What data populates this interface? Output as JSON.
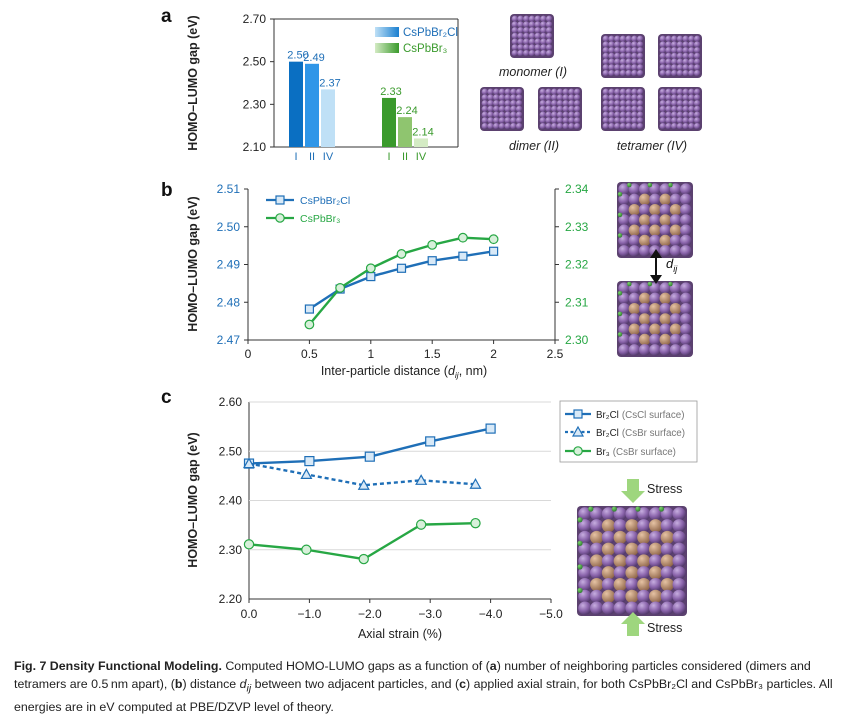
{
  "chart_data": [
    {
      "panel": "a",
      "type": "bar",
      "ylabel": "HOMO–LUMO gap (eV)",
      "ylim": [
        2.1,
        2.7
      ],
      "yticks": [
        "2.10",
        "2.30",
        "2.50",
        "2.70"
      ],
      "categories": [
        "I",
        "II",
        "IV"
      ],
      "series": [
        {
          "name": "CsPbBr₂Cl",
          "values": [
            2.5,
            2.49,
            2.37
          ],
          "labels": [
            "2.50",
            "2.49",
            "2.37"
          ],
          "colors": [
            "#0a6fc2",
            "#2f96e8",
            "#bfe0f6"
          ]
        },
        {
          "name": "CsPbBr₃",
          "values": [
            2.33,
            2.24,
            2.14
          ],
          "labels": [
            "2.33",
            "2.24",
            "2.14"
          ],
          "colors": [
            "#3a9a2c",
            "#8fc56f",
            "#d4ebc4"
          ]
        }
      ],
      "legend_position": "top-right",
      "grid": false
    },
    {
      "panel": "b",
      "type": "line",
      "xlabel": "Inter-particle distance (dᵢⱼ, nm)",
      "ylabel": "HOMO–LUMO gap (eV)",
      "xlim": [
        0,
        2.5
      ],
      "xticks": [
        "0",
        "0.5",
        "1",
        "1.5",
        "2",
        "2.5"
      ],
      "ylim_left": [
        2.47,
        2.51
      ],
      "yticks_left": [
        "2.47",
        "2.48",
        "2.49",
        "2.50",
        "2.51"
      ],
      "ylim_right": [
        2.3,
        2.34
      ],
      "yticks_right": [
        "2.30",
        "2.31",
        "2.32",
        "2.33",
        "2.34"
      ],
      "series": [
        {
          "name": "CsPbBr₂Cl",
          "axis": "left",
          "marker": "square",
          "color": "#1f6fb7",
          "x": [
            0.5,
            0.75,
            1.0,
            1.25,
            1.5,
            1.75,
            2.0
          ],
          "y": [
            2.4782,
            2.4835,
            2.4868,
            2.489,
            2.491,
            2.4922,
            2.4935
          ]
        },
        {
          "name": "CsPbBr₃",
          "axis": "right",
          "marker": "circle",
          "color": "#27a744",
          "x": [
            0.5,
            0.75,
            1.0,
            1.25,
            1.5,
            1.75,
            2.0
          ],
          "y": [
            2.3041,
            2.3138,
            2.319,
            2.3228,
            2.3252,
            2.3271,
            2.3267
          ]
        }
      ],
      "legend_position": "top-left",
      "grid": false
    },
    {
      "panel": "c",
      "type": "line",
      "xlabel": "Axial strain (%)",
      "ylabel": "HOMO–LUMO gap (eV)",
      "xlim": [
        0.0,
        -5.0
      ],
      "xticks": [
        "0.0",
        "−1.0",
        "−2.0",
        "−3.0",
        "−4.0",
        "−5.0"
      ],
      "ylim": [
        2.2,
        2.6
      ],
      "yticks": [
        "2.20",
        "2.30",
        "2.40",
        "2.50",
        "2.60"
      ],
      "series": [
        {
          "name": "Br₂Cl",
          "note": "(CsCl surface)",
          "marker": "square",
          "dash": false,
          "color": "#1f6fb7",
          "x": [
            0.0,
            -1.0,
            -2.0,
            -3.0,
            -4.0
          ],
          "y": [
            2.475,
            2.48,
            2.489,
            2.52,
            2.546
          ]
        },
        {
          "name": "Br₂Cl",
          "note": "(CsBr surface)",
          "marker": "triangle",
          "dash": true,
          "color": "#1f6fb7",
          "x": [
            0.0,
            -0.95,
            -1.9,
            -2.85,
            -3.75
          ],
          "y": [
            2.475,
            2.453,
            2.431,
            2.441,
            2.433
          ]
        },
        {
          "name": "Br₃",
          "note": "(CsBr surface)",
          "marker": "circle",
          "dash": false,
          "color": "#27a744",
          "x": [
            0.0,
            -0.95,
            -1.9,
            -2.85,
            -3.75
          ],
          "y": [
            2.311,
            2.3,
            2.281,
            2.351,
            2.354
          ]
        }
      ],
      "legend_position": "right",
      "grid": "horizontal"
    }
  ],
  "panel_labels": {
    "a": "a",
    "b": "b",
    "c": "c"
  },
  "illustrations": {
    "monomer": "monomer (I)",
    "dimer": "dimer (II)",
    "tetramer": "tetramer (IV)",
    "distance_label": "d",
    "distance_sub": "ij",
    "stress": "Stress"
  },
  "colors": {
    "blue": "#1f6fb7",
    "green": "#27a744",
    "cs_purple": "#8e6aab",
    "pb_copper": "#b68a6a",
    "bromine_green": "#3a9a3f",
    "stress_arrow": "#9ed67e"
  },
  "caption": {
    "title": "Fig. 7 Density Functional Modeling.",
    "body_1": " Computed HOMO-LUMO gaps as a function of (",
    "a": "a",
    "body_2": ") number of neighboring particles considered (dimers and tetramers are 0.5 nm apart), (",
    "b": "b",
    "body_3": ") distance ",
    "dvar": "d",
    "dsub": "ij",
    "body_4": " between two adjacent particles, and (",
    "c": "c",
    "body_5": ") applied axial strain, for both CsPbBr₂Cl and CsPbBr₃ particles. All energies are in eV computed at PBE/DZVP level of theory."
  }
}
